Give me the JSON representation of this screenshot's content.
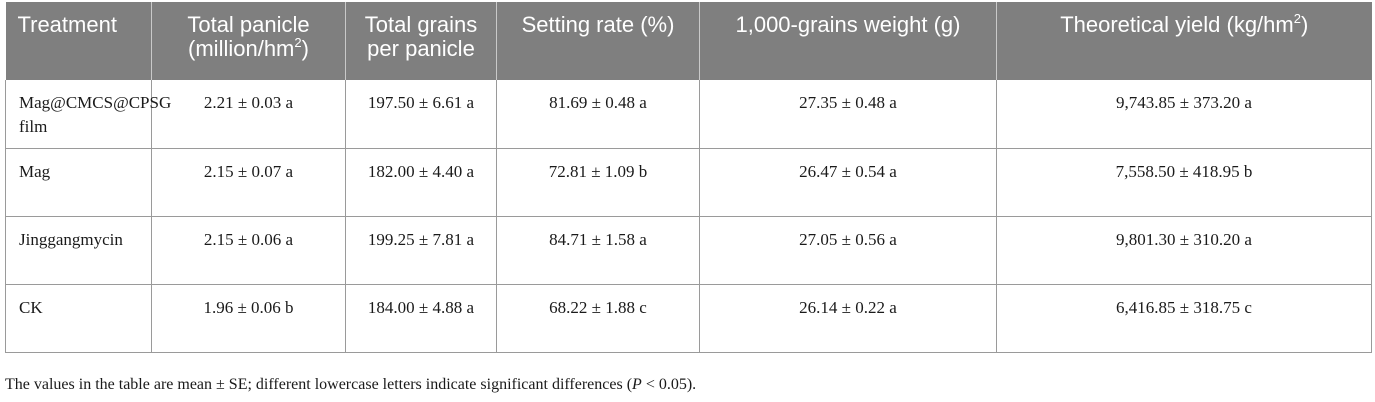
{
  "table": {
    "headers": {
      "treatment": "Treatment",
      "panicle_pre": "Total panicle (million/hm",
      "panicle_sup": "2",
      "panicle_post": ")",
      "grains": "Total grains per panicle",
      "setting": "Setting rate (%)",
      "weight": "1,000-grains weight (g)",
      "yield_pre": "Theoretical yield (kg/hm",
      "yield_sup": "2",
      "yield_post": ")"
    },
    "rows": [
      {
        "treatment": "Mag@CMCS@CPSG film",
        "panicle": "2.21 ± 0.03 a",
        "grains": "197.50 ± 6.61 a",
        "setting": "81.69 ± 0.48 a",
        "weight": "27.35 ± 0.48 a",
        "yield": "9,743.85 ± 373.20 a"
      },
      {
        "treatment": "Mag",
        "panicle": "2.15 ± 0.07 a",
        "grains": "182.00 ± 4.40 a",
        "setting": "72.81 ± 1.09 b",
        "weight": "26.47 ± 0.54 a",
        "yield": "7,558.50 ± 418.95 b"
      },
      {
        "treatment": "Jinggangmycin",
        "panicle": "2.15 ± 0.06 a",
        "grains": "199.25 ± 7.81 a",
        "setting": "84.71 ± 1.58 a",
        "weight": "27.05 ± 0.56 a",
        "yield": "9,801.30 ± 310.20 a"
      },
      {
        "treatment": "CK",
        "panicle": "1.96 ± 0.06 b",
        "grains": "184.00 ± 4.88 a",
        "setting": "68.22 ± 1.88 c",
        "weight": "26.14 ± 0.22 a",
        "yield": "6,416.85 ± 318.75 c"
      }
    ]
  },
  "footnote": {
    "pre": "The values in the table are mean ± SE; different lowercase letters indicate significant differences (",
    "italic": "P",
    "post": " < 0.05)."
  },
  "colors": {
    "header_bg": "#7f7f7f",
    "header_text": "#ffffff",
    "grid": "#9a9a9a"
  }
}
